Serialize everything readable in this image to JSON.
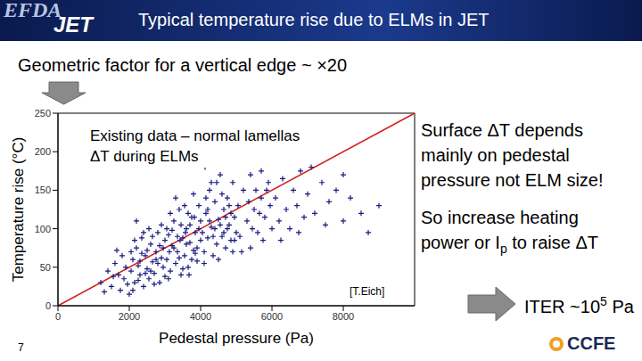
{
  "chart_data": {
    "type": "scatter",
    "x_label": "Pedestal pressure (Pa)",
    "y_label": "Temperature rise (°C)",
    "x": [
      1200,
      1400,
      1500,
      1600,
      1700,
      1750,
      1800,
      1850,
      1900,
      1950,
      2000,
      1650,
      1550,
      1300,
      2050,
      2100,
      2150,
      2200,
      2250,
      2300,
      2350,
      2400,
      2450,
      2500,
      2550,
      2600,
      2650,
      2700,
      2750,
      2800,
      2850,
      2900,
      2950,
      3000,
      2100,
      2300,
      2500,
      2700,
      2900,
      2200,
      2400,
      2600,
      2800,
      3000,
      2150,
      2350,
      2550,
      2750,
      2950,
      2450,
      2650,
      2850,
      2250,
      2050,
      3050,
      3100,
      3150,
      3200,
      3250,
      3300,
      3350,
      3400,
      3450,
      3500,
      3550,
      3600,
      3650,
      3700,
      3750,
      3800,
      3850,
      3900,
      3950,
      4000,
      3100,
      3300,
      3500,
      3700,
      3900,
      3200,
      3400,
      3600,
      3800,
      4000,
      3150,
      3350,
      3550,
      3750,
      3950,
      3250,
      3450,
      3650,
      3850,
      3050,
      3125,
      3575,
      3825,
      3425,
      3675,
      4050,
      4100,
      4150,
      4200,
      4250,
      4300,
      4350,
      4400,
      4450,
      4500,
      4550,
      4600,
      4650,
      4700,
      4750,
      4800,
      4850,
      4900,
      4950,
      5000,
      4100,
      4300,
      4500,
      4700,
      4900,
      4200,
      4400,
      4600,
      4800,
      4250,
      4450,
      4650,
      4850,
      4150,
      4350,
      4550,
      4750,
      4950,
      4125,
      4600,
      5050,
      5100,
      5200,
      5300,
      5400,
      5500,
      5600,
      5700,
      5800,
      5900,
      6000,
      5150,
      5350,
      5550,
      5750,
      5950,
      5250,
      5450,
      5650,
      5850,
      5400,
      5700,
      6100,
      6200,
      6300,
      6400,
      6500,
      6600,
      6700,
      6800,
      6900,
      7000,
      7200,
      7400,
      7600,
      7800,
      8000,
      6250,
      6750,
      7100,
      7500,
      8200,
      8500,
      8700,
      8000,
      9000
    ],
    "values": [
      30,
      45,
      25,
      55,
      40,
      20,
      65,
      35,
      50,
      28,
      15,
      72,
      38,
      18,
      45,
      60,
      30,
      75,
      52,
      40,
      88,
      25,
      65,
      48,
      35,
      80,
      57,
      42,
      70,
      95,
      30,
      62,
      50,
      85,
      20,
      58,
      72,
      28,
      105,
      110,
      95,
      45,
      55,
      38,
      85,
      68,
      100,
      60,
      75,
      42,
      90,
      78,
      33,
      70,
      60,
      92,
      45,
      78,
      110,
      55,
      70,
      125,
      40,
      88,
      65,
      100,
      50,
      82,
      115,
      72,
      95,
      58,
      130,
      85,
      35,
      140,
      48,
      105,
      75,
      98,
      62,
      80,
      145,
      110,
      120,
      90,
      130,
      60,
      100,
      75,
      105,
      120,
      68,
      100,
      70,
      95,
      115,
      85,
      40,
      95,
      70,
      120,
      88,
      150,
      102,
      65,
      135,
      80,
      112,
      170,
      90,
      125,
      75,
      140,
      105,
      85,
      160,
      115,
      95,
      55,
      160,
      60,
      115,
      70,
      125,
      100,
      145,
      130,
      110,
      160,
      95,
      120,
      140,
      90,
      105,
      100,
      85,
      180,
      195,
      130,
      90,
      150,
      110,
      170,
      125,
      95,
      140,
      115,
      160,
      100,
      70,
      135,
      150,
      85,
      130,
      185,
      100,
      120,
      150,
      75,
      175,
      140,
      110,
      165,
      125,
      100,
      150,
      130,
      175,
      115,
      145,
      120,
      160,
      135,
      150,
      110,
      85,
      95,
      180,
      105,
      140,
      120,
      95,
      170,
      130
    ],
    "color": "#1a1a80",
    "marker": "plus",
    "xlim": [
      0,
      10000
    ],
    "xticks": [
      0,
      2000,
      4000,
      6000,
      8000
    ],
    "ylim": [
      0,
      250
    ],
    "yticks": [
      0,
      50,
      100,
      150,
      200,
      250
    ],
    "grid": false,
    "reference_line": {
      "x": [
        0,
        10000
      ],
      "values": [
        0,
        250
      ],
      "color": "#d42020"
    },
    "annotations": [
      "Existing data – normal lamellas",
      "ΔT during ELMs"
    ],
    "source": "[T.Eich]"
  },
  "slide": {
    "title": "Typical temperature rise due to ELMs in JET",
    "subtitle": "Geometric factor for a vertical edge ~ ×20",
    "logo_left": [
      "EFDA",
      "JET"
    ],
    "logo_right": "CCFE",
    "page": "7",
    "notes": [
      [
        "Surface ΔT depends",
        "mainly on pedestal",
        "pressure not ELM size!"
      ],
      [
        "So increase heating",
        {
          "text": "power or I",
          "sub": "p",
          "after": " to raise ΔT"
        }
      ]
    ],
    "conclusion": {
      "text": "ITER ~10",
      "sup": "5",
      "after": " Pa"
    }
  }
}
